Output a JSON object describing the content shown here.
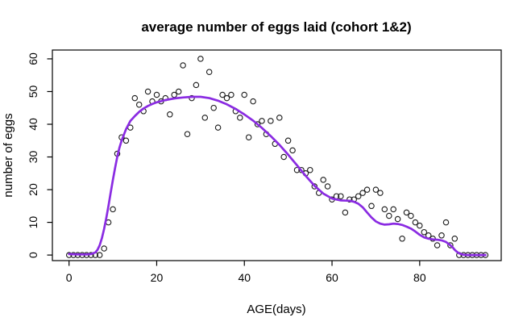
{
  "chart_data": {
    "type": "scatter",
    "title": "average number of eggs laid (cohort 1&2)",
    "xlabel": "AGE(days)",
    "ylabel": "number of eggs",
    "x_ticks": [
      0,
      20,
      40,
      60,
      80
    ],
    "y_ticks": [
      0,
      10,
      20,
      30,
      40,
      50,
      60
    ],
    "xlim": [
      -3.8,
      98.6
    ],
    "ylim": [
      -1.7,
      62.7
    ],
    "grid": false,
    "legend": null,
    "line_color": "#8A2BE2",
    "point_stroke_color": "#1a1a1a",
    "box_color": "#000000",
    "points": [
      [
        0,
        0
      ],
      [
        1,
        0
      ],
      [
        2,
        0
      ],
      [
        3,
        0
      ],
      [
        4,
        0
      ],
      [
        5,
        0
      ],
      [
        6,
        0
      ],
      [
        7,
        0
      ],
      [
        8,
        2
      ],
      [
        9,
        10
      ],
      [
        10,
        14
      ],
      [
        11,
        31
      ],
      [
        12,
        36
      ],
      [
        13,
        35
      ],
      [
        14,
        39
      ],
      [
        15,
        48
      ],
      [
        16,
        46
      ],
      [
        17,
        44
      ],
      [
        18,
        50
      ],
      [
        19,
        47
      ],
      [
        20,
        49
      ],
      [
        21,
        47
      ],
      [
        22,
        48
      ],
      [
        23,
        43
      ],
      [
        24,
        49
      ],
      [
        25,
        50
      ],
      [
        26,
        58
      ],
      [
        27,
        37
      ],
      [
        28,
        48
      ],
      [
        29,
        52
      ],
      [
        30,
        60
      ],
      [
        31,
        42
      ],
      [
        32,
        56
      ],
      [
        33,
        45
      ],
      [
        34,
        39
      ],
      [
        35,
        49
      ],
      [
        36,
        48
      ],
      [
        37,
        49
      ],
      [
        38,
        44
      ],
      [
        39,
        42
      ],
      [
        40,
        49
      ],
      [
        41,
        36
      ],
      [
        42,
        47
      ],
      [
        43,
        40
      ],
      [
        44,
        41
      ],
      [
        45,
        37
      ],
      [
        46,
        41
      ],
      [
        47,
        34
      ],
      [
        48,
        42
      ],
      [
        49,
        30
      ],
      [
        50,
        35
      ],
      [
        51,
        32
      ],
      [
        52,
        26
      ],
      [
        53,
        26
      ],
      [
        54,
        25
      ],
      [
        55,
        26
      ],
      [
        56,
        21
      ],
      [
        57,
        19
      ],
      [
        58,
        23
      ],
      [
        59,
        21
      ],
      [
        60,
        17
      ],
      [
        61,
        18
      ],
      [
        62,
        18
      ],
      [
        63,
        13
      ],
      [
        64,
        17
      ],
      [
        65,
        17
      ],
      [
        66,
        18
      ],
      [
        67,
        19
      ],
      [
        68,
        20
      ],
      [
        69,
        15
      ],
      [
        70,
        20
      ],
      [
        71,
        19
      ],
      [
        72,
        14
      ],
      [
        73,
        12
      ],
      [
        74,
        14
      ],
      [
        75,
        11
      ],
      [
        76,
        5
      ],
      [
        77,
        13
      ],
      [
        78,
        12
      ],
      [
        79,
        10
      ],
      [
        80,
        9
      ],
      [
        81,
        7
      ],
      [
        82,
        6
      ],
      [
        83,
        5
      ],
      [
        84,
        3
      ],
      [
        85,
        6
      ],
      [
        86,
        10
      ],
      [
        87,
        3
      ],
      [
        88,
        5
      ],
      [
        89,
        0
      ],
      [
        90,
        0
      ],
      [
        91,
        0
      ],
      [
        92,
        0
      ],
      [
        93,
        0
      ],
      [
        94,
        0
      ],
      [
        95,
        0
      ]
    ],
    "smooth_line": [
      [
        0,
        0.3
      ],
      [
        2,
        0.2
      ],
      [
        4,
        0.2
      ],
      [
        5,
        0.3
      ],
      [
        6,
        0.8
      ],
      [
        6.5,
        1.6
      ],
      [
        7,
        3
      ],
      [
        7.5,
        5.2
      ],
      [
        8,
        8
      ],
      [
        8.5,
        11.3
      ],
      [
        9,
        15
      ],
      [
        9.5,
        19
      ],
      [
        10,
        23
      ],
      [
        10.5,
        26.6
      ],
      [
        11,
        30
      ],
      [
        11.5,
        32.8
      ],
      [
        12,
        35
      ],
      [
        13,
        38.5
      ],
      [
        14,
        41
      ],
      [
        15,
        42.5
      ],
      [
        16,
        43.8
      ],
      [
        17,
        44.8
      ],
      [
        18,
        45.6
      ],
      [
        19,
        46.2
      ],
      [
        20,
        46.7
      ],
      [
        22,
        47.4
      ],
      [
        24,
        47.9
      ],
      [
        26,
        48.2
      ],
      [
        28,
        48.4
      ],
      [
        30,
        48.4
      ],
      [
        32,
        48
      ],
      [
        34,
        47.2
      ],
      [
        36,
        46.1
      ],
      [
        38,
        44.7
      ],
      [
        40,
        43
      ],
      [
        42,
        41.1
      ],
      [
        44,
        38.9
      ],
      [
        46,
        36.4
      ],
      [
        48,
        33.7
      ],
      [
        50,
        30.7
      ],
      [
        52,
        27.5
      ],
      [
        54,
        24.2
      ],
      [
        56,
        21.2
      ],
      [
        58,
        18.8
      ],
      [
        60,
        17.3
      ],
      [
        62,
        16.7
      ],
      [
        64,
        16.6
      ],
      [
        65,
        16.3
      ],
      [
        66,
        15.7
      ],
      [
        67,
        14.6
      ],
      [
        68,
        13
      ],
      [
        69,
        11.5
      ],
      [
        70,
        10.3
      ],
      [
        71,
        9.6
      ],
      [
        72,
        9.3
      ],
      [
        73,
        9.4
      ],
      [
        74,
        9.6
      ],
      [
        75,
        9.5
      ],
      [
        76,
        9.2
      ],
      [
        77,
        8.7
      ],
      [
        78,
        8.1
      ],
      [
        79,
        7.2
      ],
      [
        80,
        6.2
      ],
      [
        81,
        5.4
      ],
      [
        82,
        5
      ],
      [
        83,
        4.8
      ],
      [
        84,
        4.7
      ],
      [
        85,
        4.5
      ],
      [
        86,
        4
      ],
      [
        87,
        3
      ],
      [
        87.5,
        2.4
      ],
      [
        88,
        1.6
      ],
      [
        88.5,
        1
      ],
      [
        89,
        0.5
      ],
      [
        90,
        0.1
      ],
      [
        91,
        0
      ],
      [
        93,
        0
      ],
      [
        95,
        0
      ]
    ]
  }
}
